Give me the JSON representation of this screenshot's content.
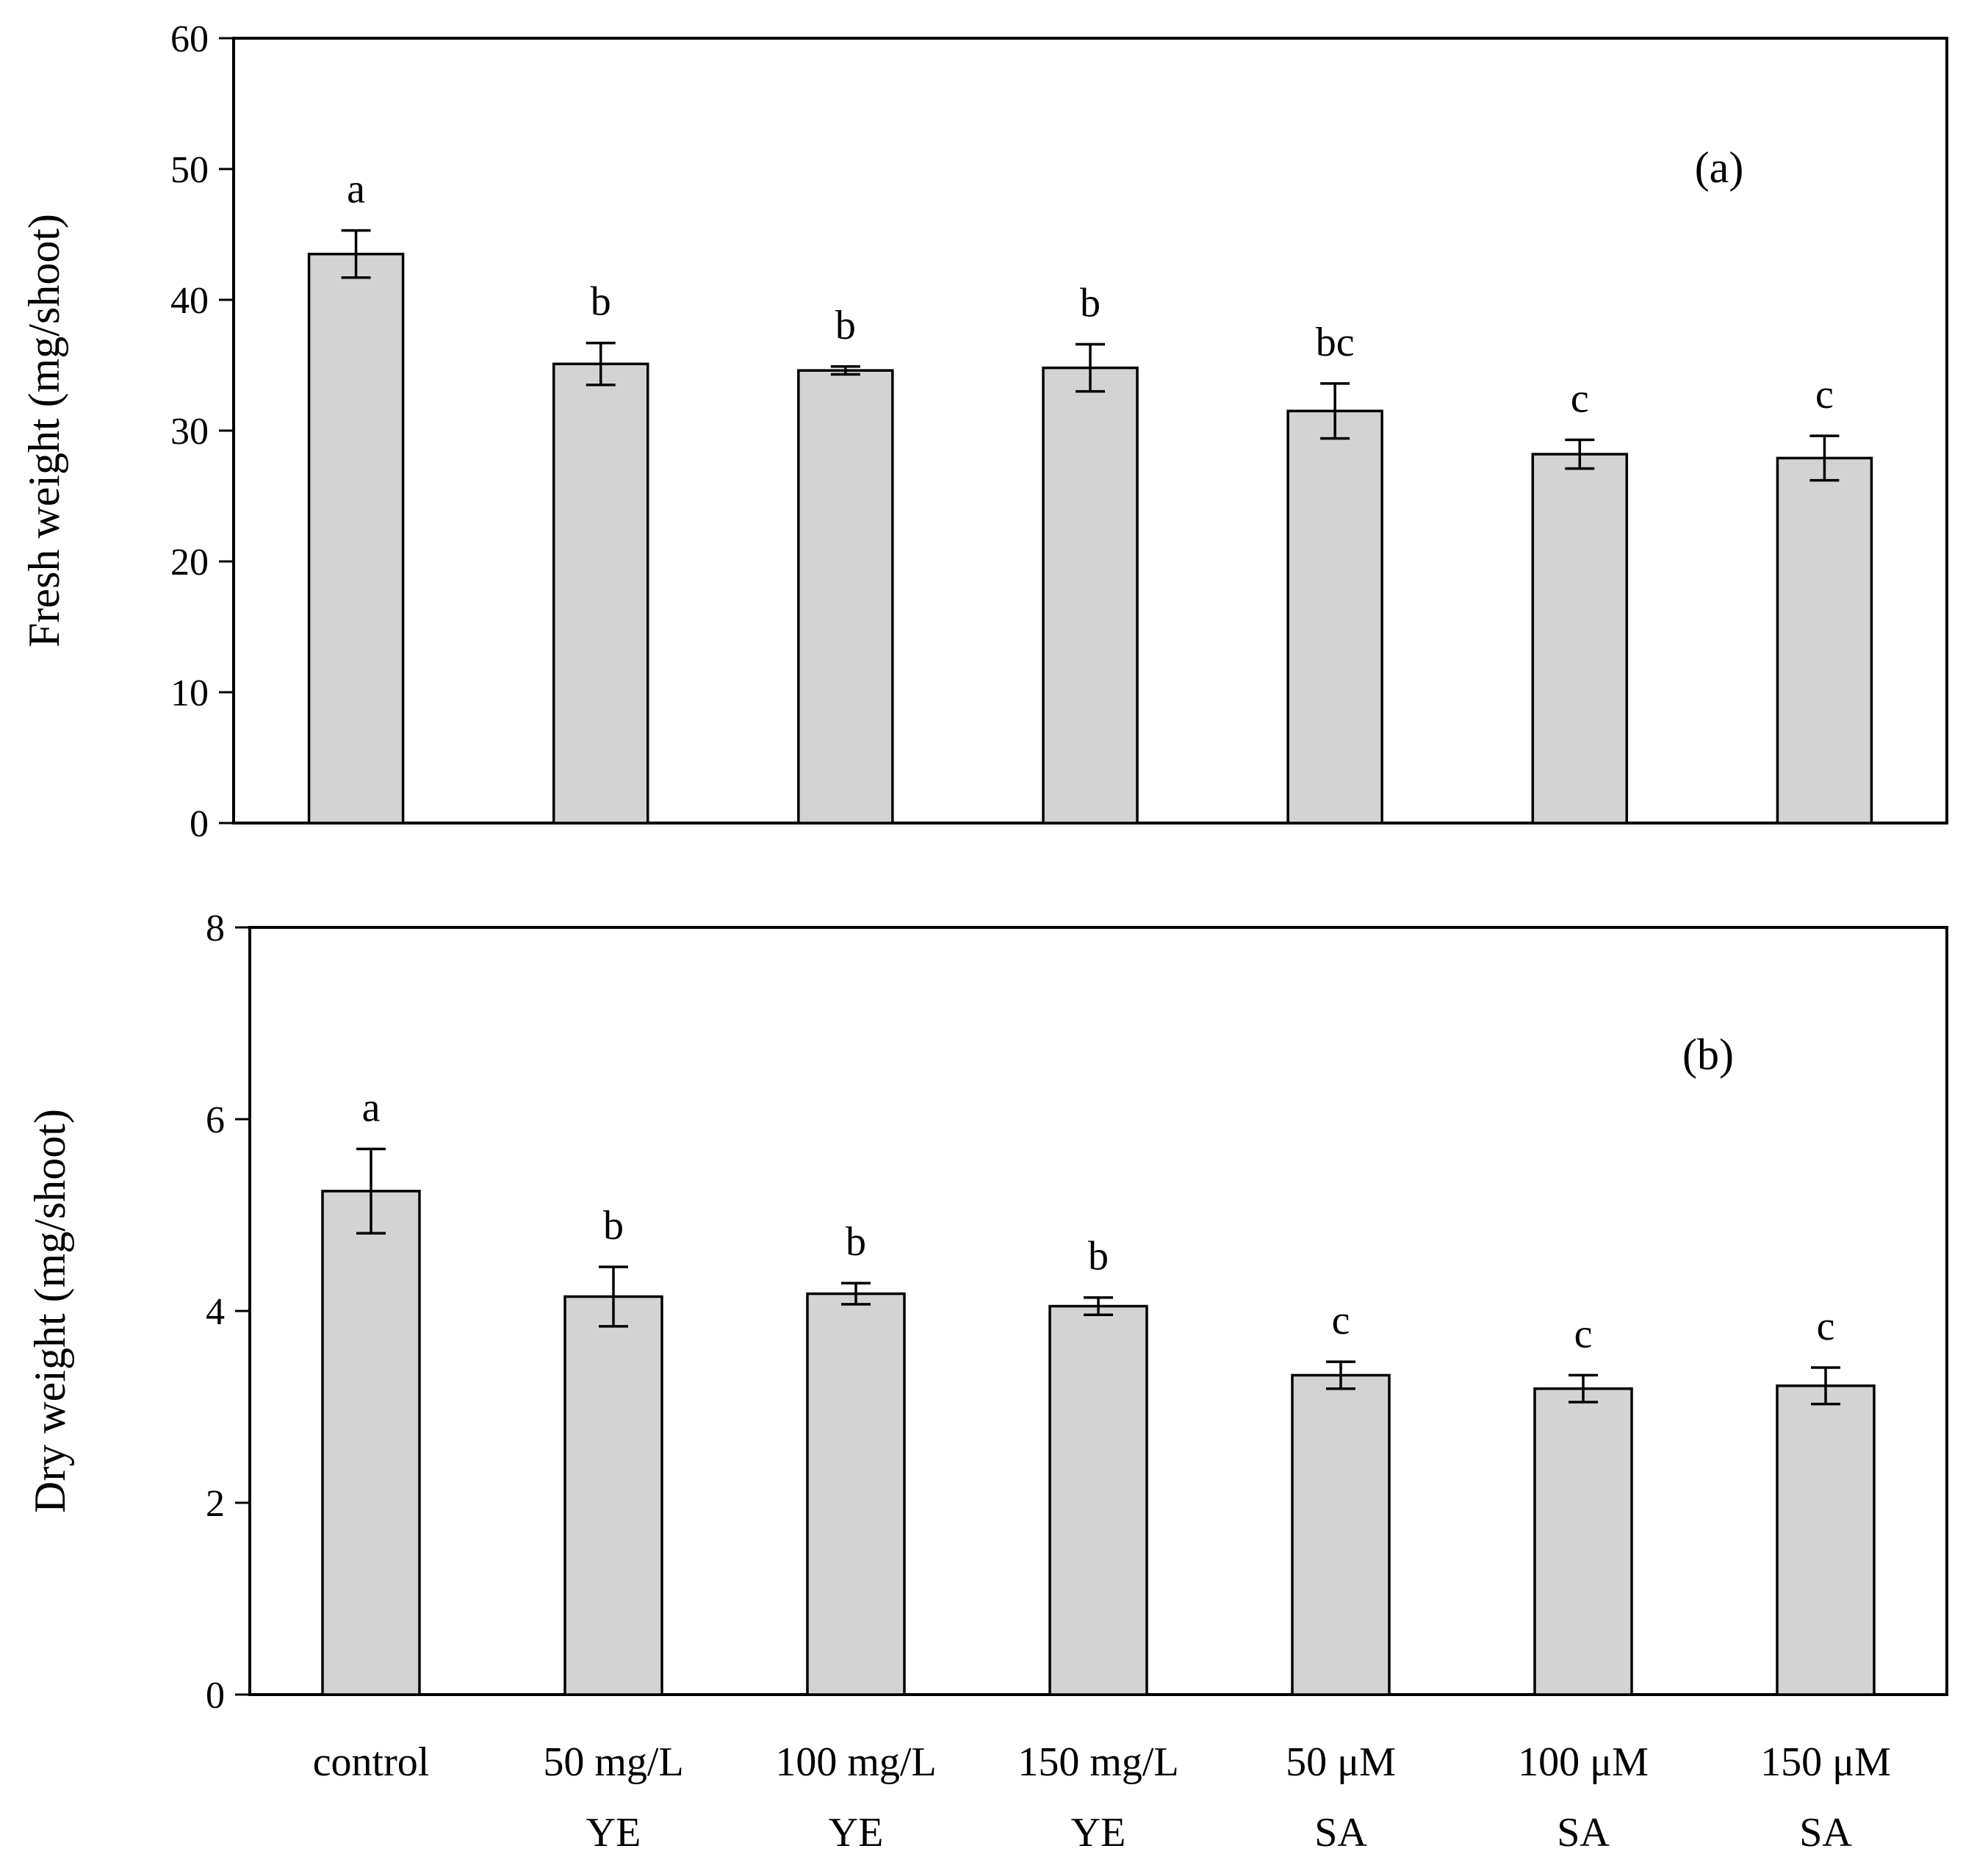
{
  "chart_data": [
    {
      "type": "bar",
      "panel_label": "(a)",
      "title": "",
      "xlabel": "",
      "ylabel": "Fresh weight (mg/shoot)",
      "ylim": [
        0,
        60
      ],
      "yticks": [
        0,
        10,
        20,
        30,
        40,
        50,
        60
      ],
      "categories": [
        [
          "control"
        ],
        [
          "50 mg/L",
          "YE"
        ],
        [
          "100 mg/L",
          "YE"
        ],
        [
          "150 mg/L",
          "YE"
        ],
        [
          "50 μM",
          "SA"
        ],
        [
          "100 μM",
          "SA"
        ],
        [
          "150 μM",
          "SA"
        ]
      ],
      "values": [
        43.5,
        35.1,
        34.6,
        34.8,
        31.5,
        28.2,
        27.9
      ],
      "errors": [
        1.8,
        1.6,
        0.3,
        1.8,
        2.1,
        1.1,
        1.7
      ],
      "letters": [
        "a",
        "b",
        "b",
        "b",
        "bc",
        "c",
        "c"
      ],
      "show_category_labels": false,
      "bar_color": "#d3d3d3"
    },
    {
      "type": "bar",
      "panel_label": "(b)",
      "title": "",
      "xlabel": "",
      "ylabel": "Dry weight (mg/shoot)",
      "ylim": [
        0,
        8
      ],
      "yticks": [
        0,
        2,
        4,
        6,
        8
      ],
      "categories": [
        [
          "control"
        ],
        [
          "50 mg/L",
          "YE"
        ],
        [
          "100 mg/L",
          "YE"
        ],
        [
          "150 mg/L",
          "YE"
        ],
        [
          "50 μM",
          "SA"
        ],
        [
          "100 μM",
          "SA"
        ],
        [
          "150 μM",
          "SA"
        ]
      ],
      "values": [
        5.25,
        4.15,
        4.18,
        4.05,
        3.33,
        3.19,
        3.22
      ],
      "errors": [
        0.44,
        0.31,
        0.11,
        0.09,
        0.14,
        0.14,
        0.19
      ],
      "letters": [
        "a",
        "b",
        "b",
        "b",
        "c",
        "c",
        "c"
      ],
      "show_category_labels": true,
      "bar_color": "#d3d3d3"
    }
  ]
}
